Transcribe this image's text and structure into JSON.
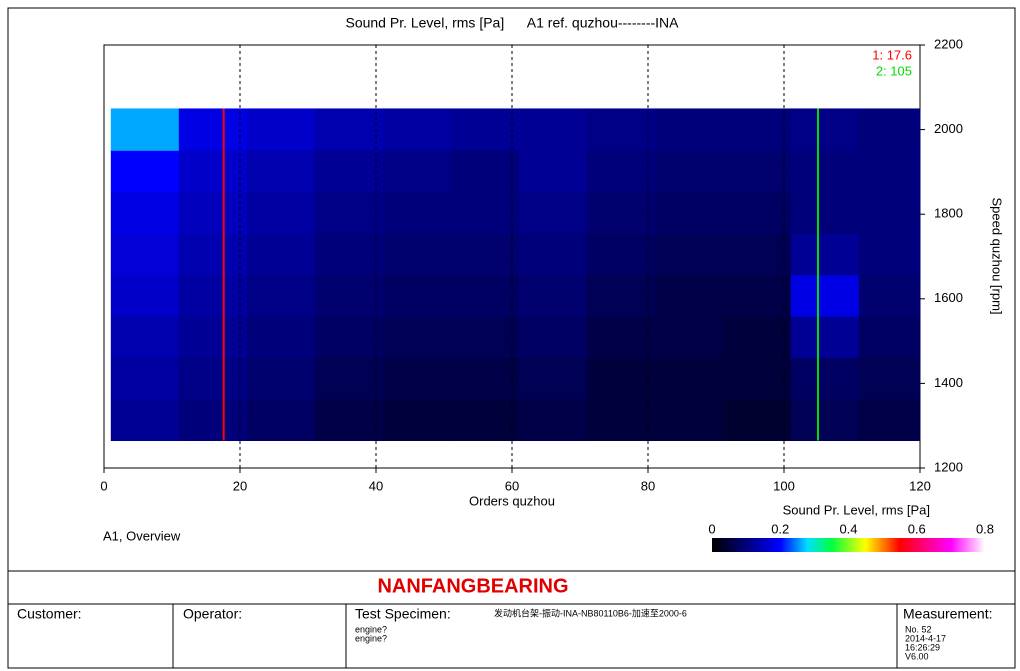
{
  "chart_data": {
    "type": "heatmap",
    "title": "Sound Pr. Level, rms [Pa]      A1 ref. quzhou--------INA",
    "xlabel": "Orders quzhou",
    "ylabel": "Speed quzhou [rpm]",
    "xlim": [
      0,
      120
    ],
    "xticks": [
      0,
      20,
      40,
      60,
      80,
      100,
      120
    ],
    "ylim": [
      1200,
      2200
    ],
    "yticks": [
      1200,
      1400,
      1600,
      1800,
      2000,
      2200
    ],
    "grid": true,
    "xbins": [
      1,
      11,
      21,
      31,
      41,
      51,
      61,
      71,
      81,
      91,
      101,
      111,
      120
    ],
    "ybins": [
      1265,
      1363,
      1461,
      1559,
      1657,
      1755,
      1853,
      1951,
      2050
    ],
    "z": [
      [
        0.12,
        0.1,
        0.08,
        0.06,
        0.05,
        0.05,
        0.06,
        0.05,
        0.05,
        0.04,
        0.07,
        0.06
      ],
      [
        0.13,
        0.11,
        0.09,
        0.07,
        0.06,
        0.06,
        0.07,
        0.05,
        0.05,
        0.05,
        0.08,
        0.07
      ],
      [
        0.14,
        0.12,
        0.1,
        0.08,
        0.07,
        0.07,
        0.08,
        0.06,
        0.06,
        0.05,
        0.12,
        0.08
      ],
      [
        0.16,
        0.13,
        0.11,
        0.09,
        0.08,
        0.08,
        0.09,
        0.07,
        0.06,
        0.06,
        0.18,
        0.09
      ],
      [
        0.17,
        0.14,
        0.12,
        0.1,
        0.09,
        0.09,
        0.1,
        0.08,
        0.07,
        0.07,
        0.12,
        0.1
      ],
      [
        0.18,
        0.15,
        0.13,
        0.11,
        0.1,
        0.1,
        0.11,
        0.09,
        0.08,
        0.08,
        0.1,
        0.1
      ],
      [
        0.2,
        0.16,
        0.14,
        0.12,
        0.11,
        0.1,
        0.12,
        0.1,
        0.09,
        0.09,
        0.1,
        0.1
      ],
      [
        0.26,
        0.18,
        0.16,
        0.14,
        0.13,
        0.12,
        0.12,
        0.11,
        0.1,
        0.1,
        0.11,
        0.1
      ]
    ],
    "cursors": [
      {
        "label": "1: 17.6",
        "value": 17.6,
        "color": "#ff0000"
      },
      {
        "label": "2: 105",
        "value": 105,
        "color": "#00dd00"
      }
    ],
    "colorbar": {
      "title": "Sound Pr. Level, rms [Pa]",
      "lim": [
        0,
        0.8
      ],
      "ticks": [
        0,
        0.2,
        0.4,
        0.6,
        0.8
      ],
      "colorscale": [
        [
          0,
          "#000000"
        ],
        [
          0.1,
          "#00007a"
        ],
        [
          0.2,
          "#0000ff"
        ],
        [
          0.28,
          "#00e0ff"
        ],
        [
          0.35,
          "#00ff40"
        ],
        [
          0.45,
          "#ffff00"
        ],
        [
          0.55,
          "#ff0000"
        ],
        [
          0.7,
          "#ff00ff"
        ],
        [
          0.8,
          "#ffffff"
        ]
      ]
    },
    "caption": "A1, Overview"
  },
  "footer": {
    "company": "NANFANGBEARING",
    "customer": "Customer:",
    "operator": "Operator:",
    "specimen": "Test Specimen:",
    "specimen_text": "发动机台架-振动-INA-NB80110B6-加速至2000-6",
    "specimen_lines": [
      "engine?",
      "engine?"
    ],
    "measurement": "Measurement:",
    "measurement_lines": [
      "No. 52",
      "2014-4-17",
      "16:26:29",
      "V6.00"
    ]
  }
}
